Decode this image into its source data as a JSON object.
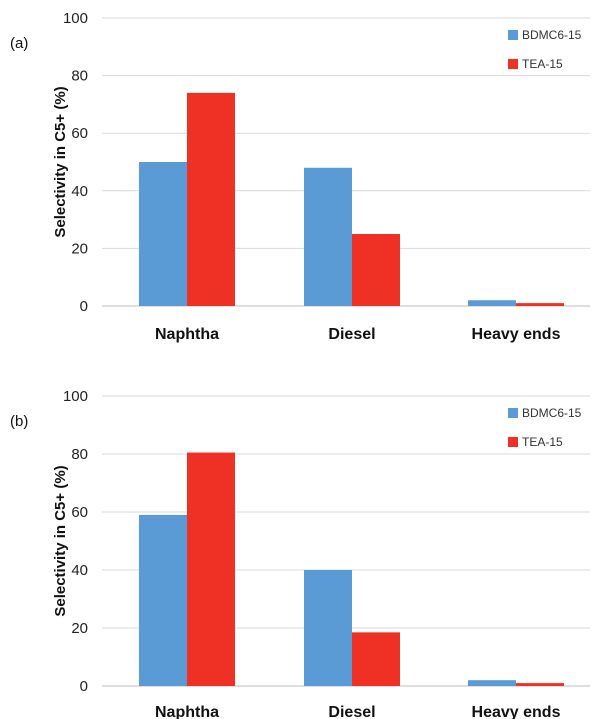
{
  "chart_data": [
    {
      "type": "bar",
      "panel_label": "(a)",
      "categories": [
        "Naphtha",
        "Diesel",
        "Heavy ends"
      ],
      "series": [
        {
          "name": "BDMC6-15",
          "color": "#5B9BD5",
          "values": [
            50,
            48,
            2
          ]
        },
        {
          "name": "TEA-15",
          "color": "#EE3124",
          "values": [
            74,
            25,
            1
          ]
        }
      ],
      "ylabel": "Selectivity in C5+ (%)",
      "ylim": [
        0,
        100
      ],
      "yticks": [
        "0",
        "20",
        "40",
        "60",
        "80",
        "100"
      ],
      "grid": true,
      "legend": "top-right"
    },
    {
      "type": "bar",
      "panel_label": "(b)",
      "categories": [
        "Naphtha",
        "Diesel",
        "Heavy ends"
      ],
      "series": [
        {
          "name": "BDMC6-15",
          "color": "#5B9BD5",
          "values": [
            59,
            40,
            2
          ]
        },
        {
          "name": "TEA-15",
          "color": "#EE3124",
          "values": [
            80.5,
            18.5,
            1
          ]
        }
      ],
      "ylabel": "Selectivity in C5+ (%)",
      "ylim": [
        0,
        100
      ],
      "yticks": [
        "0",
        "20",
        "40",
        "60",
        "80",
        "100"
      ],
      "grid": true,
      "legend": "top-right"
    }
  ]
}
